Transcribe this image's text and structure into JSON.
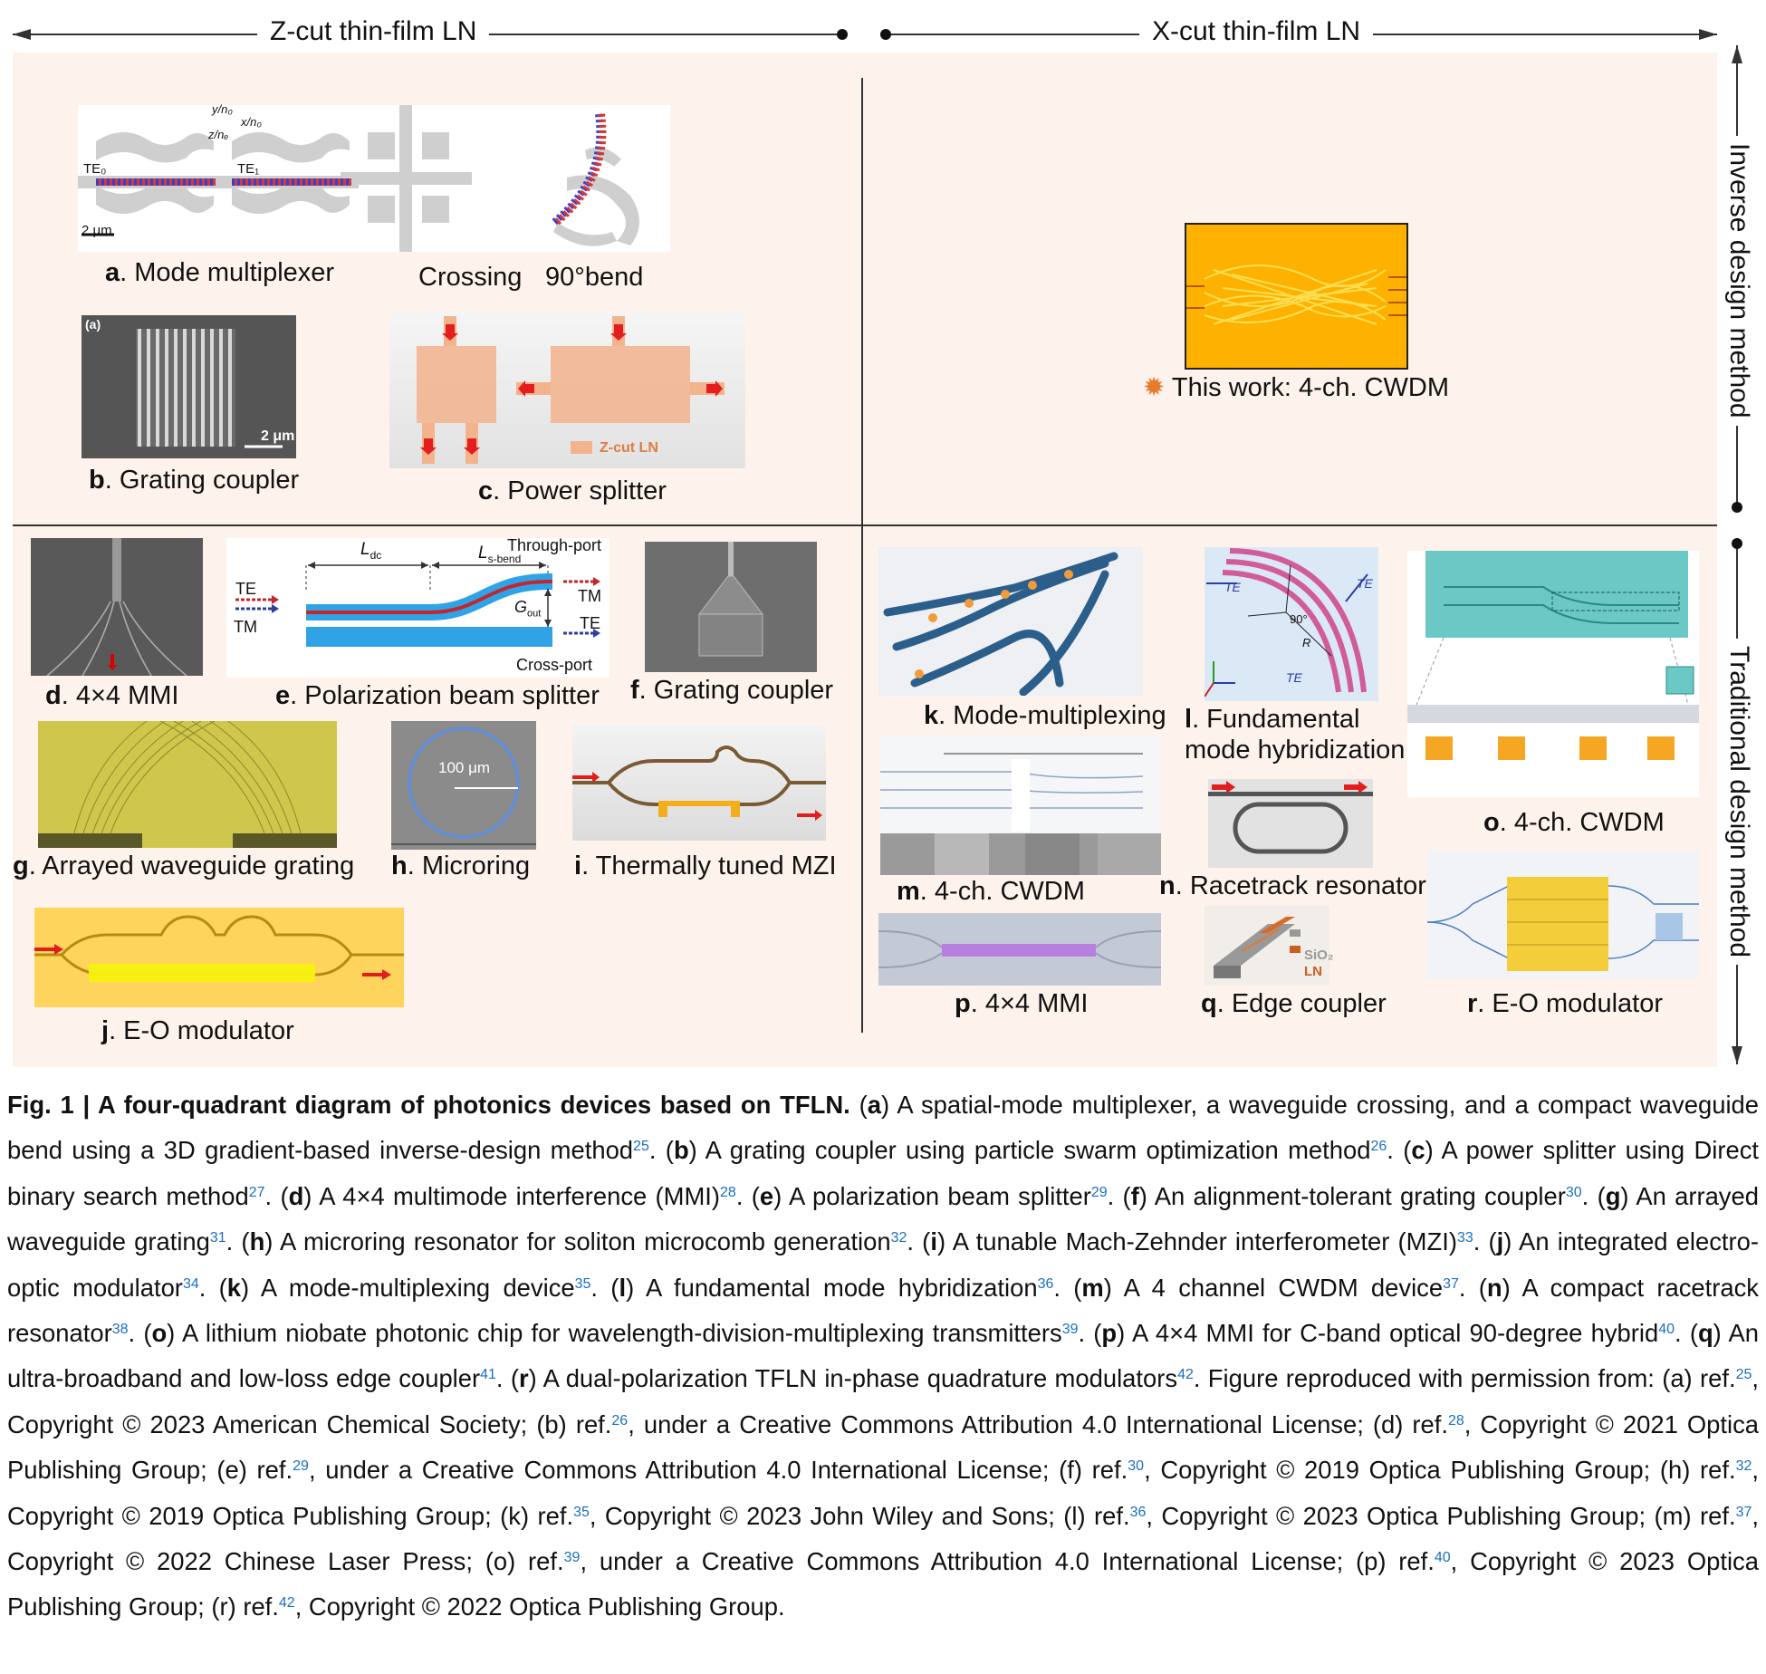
{
  "top_axis": {
    "left": "Z-cut thin-film LN",
    "right": "X-cut thin-film LN"
  },
  "side_axis": {
    "top": "Inverse design method",
    "bottom": "Traditional design method"
  },
  "panels": {
    "a": {
      "letter": "a",
      "label": ". Mode multiplexer",
      "crossing": "Crossing",
      "bend": "90°bend",
      "axes": {
        "y": "y/n₀",
        "x": "x/n₀",
        "z": "z/nₑ"
      },
      "te0": "TE₀",
      "te1": "TE₁",
      "scale": "2 μm"
    },
    "b": {
      "letter": "b",
      "label": ". Grating coupler",
      "tag": "(a)",
      "scale": "2 μm"
    },
    "c": {
      "letter": "c",
      "label": ". Power splitter",
      "legend": "Z-cut LN"
    },
    "this_work": {
      "label": "This work: 4-ch. CWDM",
      "star": "✹"
    },
    "d": {
      "letter": "d",
      "label": ". 4×4 MMI"
    },
    "e": {
      "letter": "e",
      "label": ". Polarization beam splitter",
      "ldc": "L",
      "ldc_sub": "dc",
      "lsbend": "L",
      "lsbend_sub": "s-bend",
      "through": "Through-port",
      "cross": "Cross-port",
      "te_in": "TE",
      "tm_in": "TM",
      "tm_out": "TM",
      "te_out": "TE",
      "gout": "G",
      "gout_sub": "out"
    },
    "f": {
      "letter": "f",
      "label": ". Grating coupler"
    },
    "g": {
      "letter": "g",
      "label": ". Arrayed waveguide grating"
    },
    "h": {
      "letter": "h",
      "label": ". Microring",
      "scale": "100 μm"
    },
    "i": {
      "letter": "i",
      "label": ". Thermally tuned MZI"
    },
    "j": {
      "letter": "j",
      "label": ". E-O modulator"
    },
    "k": {
      "letter": "k",
      "label": ". Mode-multiplexing"
    },
    "l": {
      "letter": "l",
      "label": ". Fundamental",
      "label2": "mode hybridization",
      "te1": "TE",
      "te2": "TE",
      "te3": "TE",
      "angle": "90°",
      "r": "R"
    },
    "m": {
      "letter": "m",
      "label": ". 4-ch. CWDM"
    },
    "n": {
      "letter": "n",
      "label": ". Racetrack resonator"
    },
    "o": {
      "letter": "o",
      "label": ". 4-ch. CWDM"
    },
    "p": {
      "letter": "p",
      "label": ". 4×4 MMI"
    },
    "q": {
      "letter": "q",
      "label": ". Edge coupler",
      "sio2": "SiO₂",
      "ln": "LN"
    },
    "r": {
      "letter": "r",
      "label": ". E-O modulator"
    }
  },
  "caption": {
    "lead": "Fig. 1 | A four-quadrant diagram of photonics devices based on TFLN.",
    "segments": [
      {
        "t": " ("
      },
      {
        "b": "a"
      },
      {
        "t": ") A spatial-mode multiplexer, a waveguide crossing, and a compact waveguide bend using a 3D gradient-based inverse-design method"
      },
      {
        "s": "25"
      },
      {
        "t": ". ("
      },
      {
        "b": "b"
      },
      {
        "t": ") A grating coupler using particle swarm optimization method"
      },
      {
        "s": "26"
      },
      {
        "t": ". ("
      },
      {
        "b": "c"
      },
      {
        "t": ") A power splitter using Direct binary search method"
      },
      {
        "s": "27"
      },
      {
        "t": ". ("
      },
      {
        "b": "d"
      },
      {
        "t": ") A 4×4 multimode interference (MMI)"
      },
      {
        "s": "28"
      },
      {
        "t": ". ("
      },
      {
        "b": "e"
      },
      {
        "t": ") A polarization beam splitter"
      },
      {
        "s": "29"
      },
      {
        "t": ". ("
      },
      {
        "b": "f"
      },
      {
        "t": ") An alignment-tolerant grating coupler"
      },
      {
        "s": "30"
      },
      {
        "t": ". ("
      },
      {
        "b": "g"
      },
      {
        "t": ") An arrayed waveguide grating"
      },
      {
        "s": "31"
      },
      {
        "t": ". ("
      },
      {
        "b": "h"
      },
      {
        "t": ") A microring resonator for soliton microcomb generation"
      },
      {
        "s": "32"
      },
      {
        "t": ". ("
      },
      {
        "b": "i"
      },
      {
        "t": ") A tunable Mach-Zehnder interferometer (MZI)"
      },
      {
        "s": "33"
      },
      {
        "t": ". ("
      },
      {
        "b": "j"
      },
      {
        "t": ") An integrated electro-optic modulator"
      },
      {
        "s": "34"
      },
      {
        "t": ". ("
      },
      {
        "b": "k"
      },
      {
        "t": ") A mode-multiplexing device"
      },
      {
        "s": "35"
      },
      {
        "t": ". ("
      },
      {
        "b": "l"
      },
      {
        "t": ") A fundamental mode hybridization"
      },
      {
        "s": "36"
      },
      {
        "t": ". ("
      },
      {
        "b": "m"
      },
      {
        "t": ") A 4 channel CWDM device"
      },
      {
        "s": "37"
      },
      {
        "t": ". ("
      },
      {
        "b": "n"
      },
      {
        "t": ") A compact racetrack resonator"
      },
      {
        "s": "38"
      },
      {
        "t": ". ("
      },
      {
        "b": "o"
      },
      {
        "t": ") A lithium niobate photonic chip for wavelength-division-multiplexing transmitters"
      },
      {
        "s": "39"
      },
      {
        "t": ". ("
      },
      {
        "b": "p"
      },
      {
        "t": ") A 4×4 MMI for C-band optical 90-degree hybrid"
      },
      {
        "s": "40"
      },
      {
        "t": ". ("
      },
      {
        "b": "q"
      },
      {
        "t": ") An ultra-broadband and low-loss edge coupler"
      },
      {
        "s": "41"
      },
      {
        "t": ". ("
      },
      {
        "b": "r"
      },
      {
        "t": ") A dual-polarization TFLN in-phase quadrature modulators"
      },
      {
        "s": "42"
      },
      {
        "t": ". Figure reproduced with permission from: (a) ref."
      },
      {
        "s": "25"
      },
      {
        "t": ", Copyright © 2023 American Chemical Society; (b) ref."
      },
      {
        "s": "26"
      },
      {
        "t": ", under a Creative Commons Attribution 4.0 International License; (d) ref."
      },
      {
        "s": "28"
      },
      {
        "t": ", Copyright © 2021 Optica Publishing Group; (e) ref."
      },
      {
        "s": "29"
      },
      {
        "t": ", under a Creative Commons Attribution 4.0 International License; (f) ref."
      },
      {
        "s": "30"
      },
      {
        "t": ", Copyright © 2019 Optica Publishing Group; (h) ref."
      },
      {
        "s": "32"
      },
      {
        "t": ", Copyright © 2019 Optica Publishing Group; (k) ref."
      },
      {
        "s": "35"
      },
      {
        "t": ", Copyright © 2023 John Wiley and Sons; (l) ref."
      },
      {
        "s": "36"
      },
      {
        "t": ", Copyright © 2023 Optica Publishing Group; (m) ref."
      },
      {
        "s": "37"
      },
      {
        "t": ", Copyright © 2022 Chinese Laser Press; (o) ref."
      },
      {
        "s": "39"
      },
      {
        "t": ", under a Creative Commons Attribution 4.0 International License; (p) ref."
      },
      {
        "s": "40"
      },
      {
        "t": ", Copyright © 2023 Optica Publishing Group; (r) ref."
      },
      {
        "s": "42"
      },
      {
        "t": ", Copyright © 2022 Optica Publishing Group."
      }
    ]
  }
}
